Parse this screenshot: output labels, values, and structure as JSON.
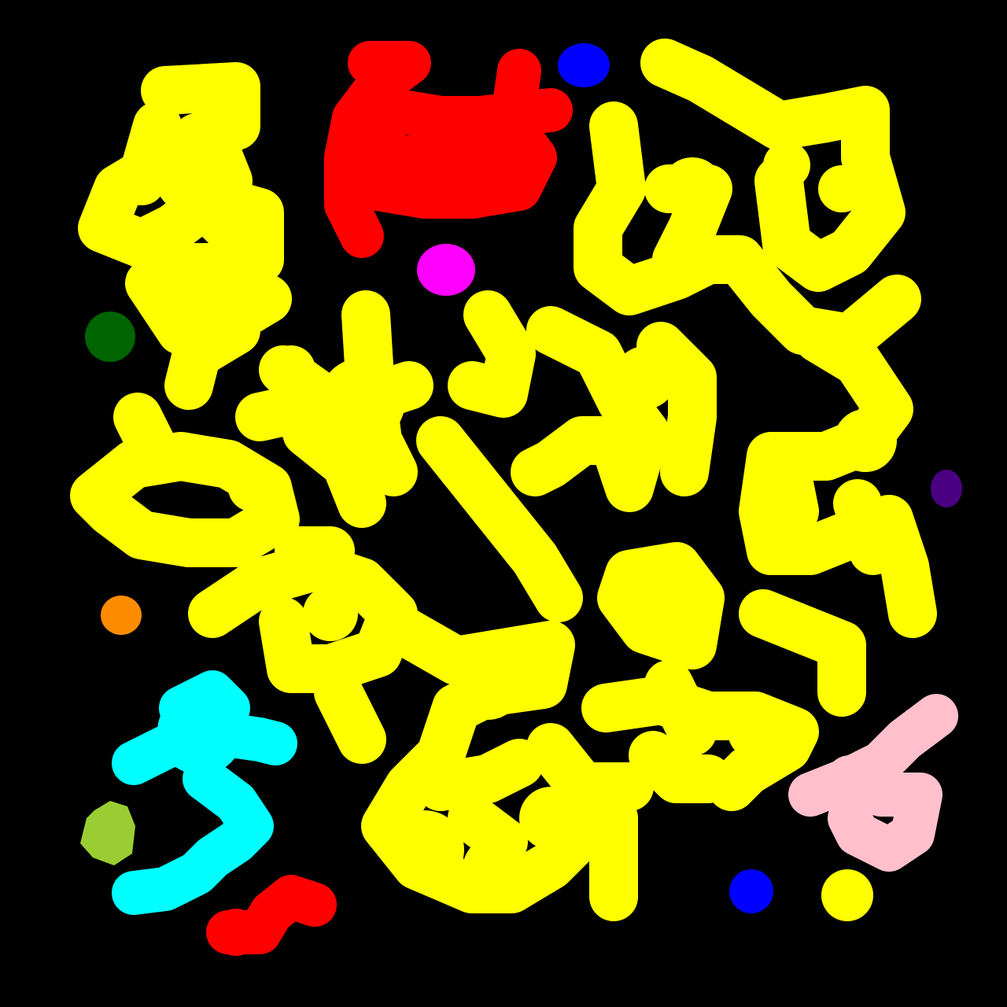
{
  "background": "#000000",
  "regions": [
    {
      "name": "large-yellow-blob-region",
      "color": "#ffff00"
    },
    {
      "name": "red-blob-region-top",
      "color": "#ff0000"
    },
    {
      "name": "red-blob-region-bottom",
      "color": "#ff0000"
    },
    {
      "name": "blue-dot-top",
      "color": "#0000ff"
    },
    {
      "name": "blue-dot-bottom",
      "color": "#0000ff"
    },
    {
      "name": "magenta-dot",
      "color": "#ff00ff"
    },
    {
      "name": "green-dot",
      "color": "#006400"
    },
    {
      "name": "indigo-dot",
      "color": "#4b0082"
    },
    {
      "name": "orange-dot",
      "color": "#ff8c00"
    },
    {
      "name": "cyan-blob-region",
      "color": "#00ffff"
    },
    {
      "name": "yellowgreen-blob",
      "color": "#9acd32"
    },
    {
      "name": "pink-blob-region",
      "color": "#ffc0cb"
    },
    {
      "name": "yellow-dot-bottom-right",
      "color": "#ffff00"
    }
  ]
}
